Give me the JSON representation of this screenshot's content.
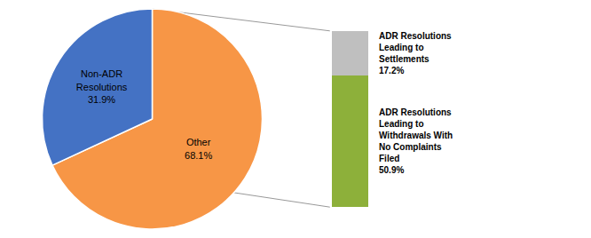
{
  "chart_data": [
    {
      "type": "pie",
      "values": [
        68.1,
        31.9
      ],
      "value_labels": [
        "Other\n68.1%",
        "Non-ADR\nResolutions\n31.9%"
      ],
      "colors": [
        "#F79646",
        "#4472C4"
      ],
      "data_labels": true
    },
    {
      "type": "bar",
      "stacked": true,
      "categories": [
        null
      ],
      "series": [
        {
          "color": "#8DB03A",
          "values": [
            50.9
          ],
          "value_labels": [
            "ADR Resolutions\nLeading to\nWithdrawals With\nNo Complaints\nFiled\n50.9%"
          ]
        },
        {
          "color": "#BFBFBF",
          "values": [
            17.2
          ],
          "value_labels": [
            "ADR Resolutions\nLeading to\nSettlements\n17.2%"
          ]
        }
      ],
      "ylim": [
        0,
        68.1
      ],
      "yticks": [],
      "tick_labels": false,
      "data_labels": true
    }
  ]
}
